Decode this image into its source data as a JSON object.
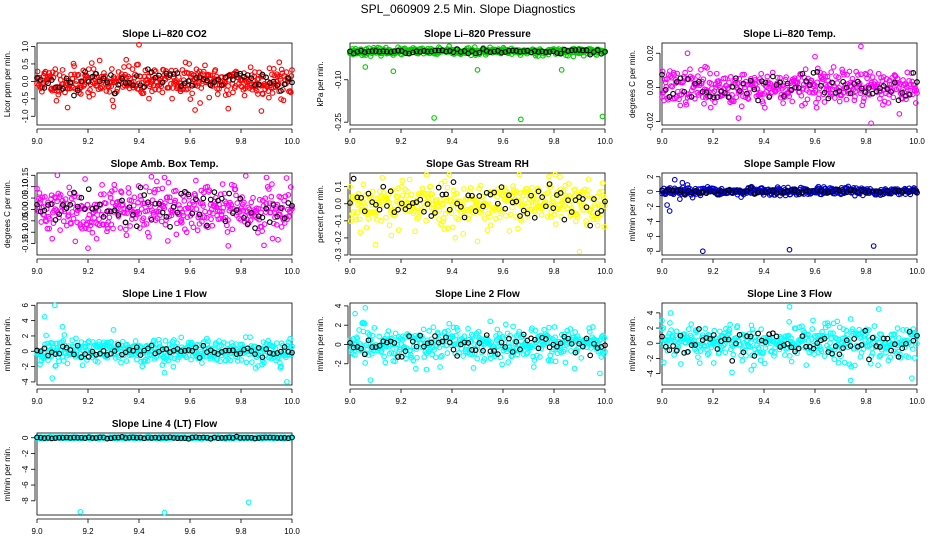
{
  "figure_title": "SPL_060909  2.5 Min. Slope Diagnostics",
  "chart_data": [
    {
      "type": "scatter",
      "title": "Slope Li–820 CO2",
      "ylabel": "Licor ppm per min.",
      "xlim": [
        9.0,
        10.0
      ],
      "ylim": [
        -1.25,
        1.1
      ],
      "xticks": [
        9.0,
        9.2,
        9.4,
        9.6,
        9.8,
        10.0
      ],
      "yticks": [
        -1.0,
        -0.5,
        0.0,
        0.5,
        1.0
      ],
      "series_colors": [
        "#ff0000",
        "#000000"
      ],
      "spread": 0.22,
      "black_spread": 0.15,
      "outliers": [
        [
          9.4,
          1.05
        ],
        [
          9.12,
          -0.75
        ],
        [
          9.3,
          -0.72
        ],
        [
          9.62,
          -0.82
        ],
        [
          9.88,
          -0.85
        ],
        [
          9.75,
          -0.78
        ],
        [
          9.35,
          0.62
        ],
        [
          9.95,
          0.55
        ]
      ],
      "seed": 11
    },
    {
      "type": "scatter",
      "title": "Slope Li–820 Pressure",
      "ylabel": "kPa per min.",
      "xlim": [
        9.0,
        10.0
      ],
      "ylim": [
        -0.26,
        0.03
      ],
      "xticks": [
        9.0,
        9.2,
        9.4,
        9.6,
        9.8,
        10.0
      ],
      "yticks": [
        -0.25,
        -0.1
      ],
      "ytick_labels": [
        "-0.25",
        "-0.10"
      ],
      "series_colors": [
        "#00cc00",
        "#000000"
      ],
      "spread": 0.006,
      "black_spread": 0.004,
      "outliers": [
        [
          9.06,
          -0.055
        ],
        [
          9.17,
          -0.07
        ],
        [
          9.33,
          -0.235
        ],
        [
          9.5,
          -0.065
        ],
        [
          9.67,
          -0.24
        ],
        [
          9.83,
          -0.065
        ],
        [
          9.99,
          -0.23
        ]
      ],
      "seed": 23
    },
    {
      "type": "scatter",
      "title": "Slope Li–820 Temp.",
      "ylabel": "degrees C per min.",
      "xlim": [
        9.0,
        10.0
      ],
      "ylim": [
        -0.022,
        0.026
      ],
      "xticks": [
        9.0,
        9.2,
        9.4,
        9.6,
        9.8,
        10.0
      ],
      "yticks": [
        -0.02,
        0.0,
        0.02
      ],
      "ytick_labels": [
        "-0.02",
        "0.00",
        "0.02"
      ],
      "series_colors": [
        "#ff00ff",
        "#000000"
      ],
      "spread": 0.005,
      "black_spread": 0.004,
      "outliers": [
        [
          9.78,
          0.024
        ],
        [
          9.82,
          -0.021
        ],
        [
          9.1,
          0.02
        ],
        [
          9.3,
          -0.018
        ],
        [
          9.6,
          0.018
        ]
      ],
      "seed": 37
    },
    {
      "type": "scatter",
      "title": "Slope Amb. Box Temp.",
      "ylabel": "degrees C per min.",
      "xlim": [
        9.0,
        10.0
      ],
      "ylim": [
        -0.2,
        0.16
      ],
      "xticks": [
        9.0,
        9.2,
        9.4,
        9.6,
        9.8,
        10.0
      ],
      "yticks": [
        -0.15,
        -0.1,
        -0.05,
        0.0,
        0.05,
        0.1,
        0.15
      ],
      "ytick_labels": [
        "-0.15",
        "-0.10",
        "-0.05",
        "0.00",
        "0.05",
        "0.10",
        "0.15"
      ],
      "series_colors": [
        "#ff00ff",
        "#000000"
      ],
      "spread": 0.055,
      "black_spread": 0.045,
      "outliers": [
        [
          9.08,
          0.15
        ],
        [
          9.2,
          -0.17
        ],
        [
          9.5,
          0.14
        ],
        [
          9.75,
          -0.16
        ],
        [
          9.9,
          0.14
        ]
      ],
      "seed": 41
    },
    {
      "type": "scatter",
      "title": "Slope Gas Stream RH",
      "ylabel": "percent per min.",
      "xlim": [
        9.0,
        10.0
      ],
      "ylim": [
        -0.3,
        0.18
      ],
      "xticks": [
        9.0,
        9.2,
        9.4,
        9.6,
        9.8,
        10.0
      ],
      "yticks": [
        -0.3,
        -0.2,
        -0.1,
        0.0,
        0.1
      ],
      "ytick_labels": [
        "-0.3",
        "-0.2",
        "-0.1",
        "0.0",
        "0.1"
      ],
      "series_colors": [
        "#ffff00",
        "#000000"
      ],
      "spread": 0.07,
      "black_spread": 0.06,
      "outliers": [
        [
          9.3,
          0.17
        ],
        [
          9.78,
          0.16
        ],
        [
          9.1,
          -0.24
        ],
        [
          9.5,
          -0.22
        ],
        [
          9.9,
          -0.28
        ]
      ],
      "seed": 53
    },
    {
      "type": "scatter",
      "title": "Slope Sample Flow",
      "ylabel": "ml/min per min.",
      "xlim": [
        9.0,
        10.0
      ],
      "ylim": [
        -8.5,
        2.5
      ],
      "xticks": [
        9.0,
        9.2,
        9.4,
        9.6,
        9.8,
        10.0
      ],
      "yticks": [
        -8,
        -6,
        -4,
        -2,
        0,
        2
      ],
      "ytick_labels": [
        "-8",
        "-6",
        "-4",
        "-2",
        "0",
        "2"
      ],
      "series_colors": [
        "#0000cc",
        "#000000"
      ],
      "spread": 0.25,
      "black_spread": 0.15,
      "outliers": [
        [
          9.02,
          -1.8
        ],
        [
          9.03,
          -2.6
        ],
        [
          9.05,
          1.6
        ],
        [
          9.08,
          1.2
        ],
        [
          9.1,
          0.9
        ],
        [
          9.12,
          -0.8
        ],
        [
          9.16,
          -8.0
        ],
        [
          9.5,
          -7.8
        ],
        [
          9.83,
          -7.3
        ],
        [
          9.07,
          -1.0
        ]
      ],
      "seed": 67
    },
    {
      "type": "scatter",
      "title": "Slope Line 1 Flow",
      "ylabel": "ml/min per min.",
      "xlim": [
        9.0,
        10.0
      ],
      "ylim": [
        -4.4,
        6.3
      ],
      "xticks": [
        9.0,
        9.2,
        9.4,
        9.6,
        9.8,
        10.0
      ],
      "yticks": [
        -4,
        -2,
        0,
        2,
        4,
        6
      ],
      "ytick_labels": [
        "-4",
        "-2",
        "0",
        "2",
        "4",
        "6"
      ],
      "series_colors": [
        "#00ffff",
        "#000000"
      ],
      "spread": 0.9,
      "black_spread": 0.4,
      "outliers": [
        [
          9.07,
          6.0
        ],
        [
          9.03,
          4.5
        ],
        [
          9.1,
          3.2
        ],
        [
          9.06,
          -3.5
        ],
        [
          9.98,
          -4.0
        ],
        [
          9.5,
          -2.8
        ],
        [
          9.3,
          2.8
        ]
      ],
      "seed": 71
    },
    {
      "type": "scatter",
      "title": "Slope Line 2 Flow",
      "ylabel": "ml/min per min.",
      "xlim": [
        9.0,
        10.0
      ],
      "ylim": [
        -4.2,
        4.3
      ],
      "xticks": [
        9.0,
        9.2,
        9.4,
        9.6,
        9.8,
        10.0
      ],
      "yticks": [
        -2,
        0,
        2,
        4
      ],
      "ytick_labels": [
        "-2",
        "0",
        "2",
        "4"
      ],
      "series_colors": [
        "#00ffff",
        "#000000"
      ],
      "spread": 0.9,
      "black_spread": 0.6,
      "outliers": [
        [
          9.06,
          3.8
        ],
        [
          9.02,
          3.2
        ],
        [
          9.08,
          -3.7
        ],
        [
          9.98,
          -3.0
        ],
        [
          9.55,
          2.4
        ],
        [
          9.3,
          -2.6
        ]
      ],
      "seed": 83
    },
    {
      "type": "scatter",
      "title": "Slope Line 3 Flow",
      "ylabel": "ml/min per min.",
      "xlim": [
        9.0,
        10.0
      ],
      "ylim": [
        -5.5,
        5.3
      ],
      "xticks": [
        9.0,
        9.2,
        9.4,
        9.6,
        9.8,
        10.0
      ],
      "yticks": [
        -4,
        -2,
        0,
        2,
        4
      ],
      "ytick_labels": [
        "-4",
        "-2",
        "0",
        "2",
        "4"
      ],
      "series_colors": [
        "#00ffff",
        "#000000"
      ],
      "spread": 1.3,
      "black_spread": 1.0,
      "outliers": [
        [
          9.0,
          3.0
        ],
        [
          9.5,
          4.8
        ],
        [
          9.74,
          -4.9
        ],
        [
          9.98,
          -4.6
        ],
        [
          9.35,
          -3.5
        ],
        [
          9.85,
          4.5
        ]
      ],
      "seed": 97
    },
    {
      "type": "scatter",
      "title": "Slope Line 4 (LT) Flow",
      "ylabel": "ml/min per min.",
      "xlim": [
        9.0,
        10.0
      ],
      "ylim": [
        -9.8,
        0.6
      ],
      "xticks": [
        9.0,
        9.2,
        9.4,
        9.6,
        9.8,
        10.0
      ],
      "yticks": [
        -8,
        -6,
        -4,
        -2,
        0
      ],
      "ytick_labels": [
        "-8",
        "-6",
        "-4",
        "-2",
        "0"
      ],
      "series_colors": [
        "#00ffff",
        "#000000"
      ],
      "spread": 0.06,
      "black_spread": 0.05,
      "outliers": [
        [
          9.17,
          -9.4
        ],
        [
          9.5,
          -9.5
        ],
        [
          9.83,
          -8.2
        ]
      ],
      "seed": 101
    }
  ]
}
